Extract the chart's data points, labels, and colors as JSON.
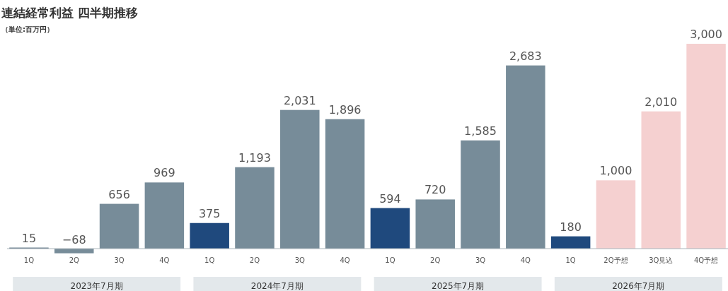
{
  "chart_data": {
    "type": "bar",
    "title": "連結経常利益 四半期推移",
    "subtitle": "（単位:百万円）",
    "categories": [
      "1Q",
      "2Q",
      "3Q",
      "4Q",
      "1Q",
      "2Q",
      "3Q",
      "4Q",
      "1Q",
      "2Q",
      "3Q",
      "4Q",
      "1Q",
      "2Q予想",
      "3Q見込",
      "4Q予想"
    ],
    "values": [
      15,
      -68,
      656,
      969,
      375,
      1193,
      2031,
      1896,
      594,
      720,
      1585,
      2683,
      180,
      1000,
      2010,
      3000
    ],
    "colors": [
      "#5e7586",
      "#778c99",
      "#778c99",
      "#778c99",
      "#1f497d",
      "#778c99",
      "#778c99",
      "#778c99",
      "#1f497d",
      "#778c99",
      "#778c99",
      "#778c99",
      "#1f497d",
      "#f5d0d0",
      "#f5d0d0",
      "#f5d0d0"
    ],
    "value_labels": [
      "15",
      "−68",
      "656",
      "969",
      "375",
      "1,193",
      "2,031",
      "1,896",
      "594",
      "720",
      "1,585",
      "2,683",
      "180",
      "1,000",
      "2,010",
      "3,000"
    ],
    "annotations": [
      "2023年7月期",
      "2024年7月期",
      "2025年7月期",
      "2026年7月期"
    ]
  }
}
